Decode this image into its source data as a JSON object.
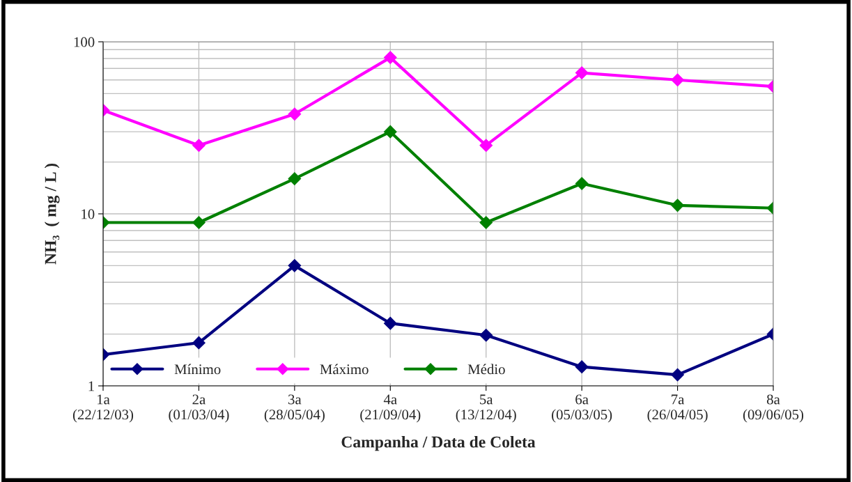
{
  "chart_data": {
    "type": "line",
    "xlabel": "Campanha / Data de Coleta",
    "ylabel": "NH₃  ( mg / L )",
    "categories": [
      "1a\n(22/12/03)",
      "2a\n(01/03/04)",
      "3a\n(28/05/04)",
      "4a\n(21/09/04)",
      "5a\n(13/12/04)",
      "6a\n(05/03/05)",
      "7a\n(26/04/05)",
      "8a\n(09/06/05)"
    ],
    "series": [
      {
        "name": "Mínimo",
        "color": "#000080",
        "values": [
          1.52,
          1.78,
          5.0,
          2.31,
          1.97,
          1.29,
          1.16,
          2.0
        ]
      },
      {
        "name": "Máximo",
        "color": "#ff00ff",
        "values": [
          40,
          25,
          38,
          81,
          25,
          66,
          60,
          55
        ]
      },
      {
        "name": "Médio",
        "color": "#008000",
        "values": [
          8.9,
          8.9,
          16,
          30,
          8.9,
          15,
          11.2,
          10.8
        ]
      }
    ],
    "log": true,
    "ylim": [
      1,
      100
    ],
    "yticks": [
      1,
      10,
      100
    ],
    "grid": true,
    "legend": "bottom left",
    "marker": "diamond",
    "line_style": "solid"
  }
}
